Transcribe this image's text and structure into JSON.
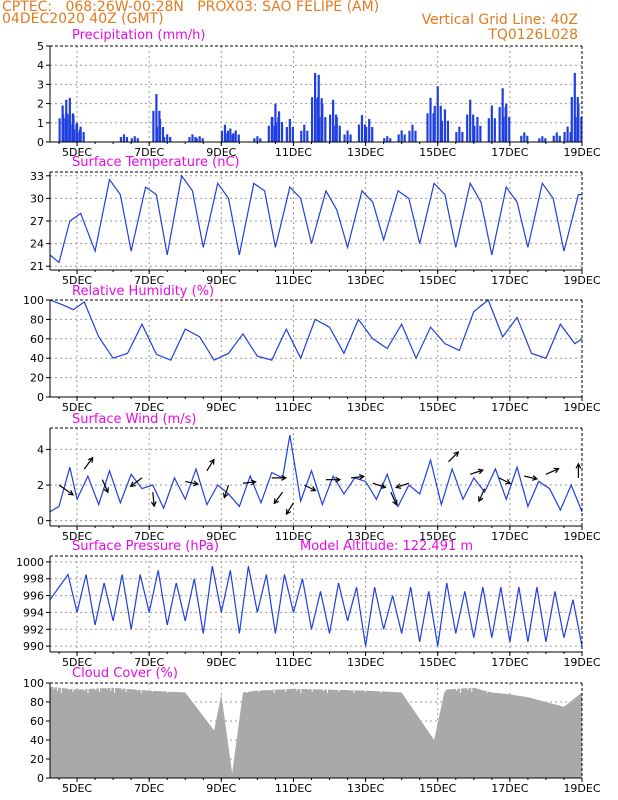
{
  "header": {
    "line1": "CPTEC:   068:26W-00:28N   PROX03: SAO FELIPE (AM)",
    "line2": "04DEC2020 40Z (GMT)",
    "grid_note": "Vertical Grid Line: 40Z",
    "code": "TQ0126L028"
  },
  "colors": {
    "title": "#e60be6",
    "header": "#e07b20",
    "line": "#1f3fe0",
    "cloud": "#a9a9a9",
    "bar": "#1f3fe0"
  },
  "x_ticks": [
    "5DEC",
    "7DEC",
    "9DEC",
    "11DEC",
    "13DEC",
    "15DEC",
    "17DEC",
    "19DEC"
  ],
  "chart_data": [
    {
      "type": "bar",
      "title": "Precipitation (mm/h)",
      "ylim": [
        0,
        5
      ],
      "yticks": [
        0,
        1,
        2,
        3,
        4,
        5
      ],
      "x_range_days": [
        4.25,
        19.0
      ],
      "events": [
        {
          "day": 4.6,
          "value": 1.9
        },
        {
          "day": 4.7,
          "value": 2.2
        },
        {
          "day": 4.8,
          "value": 2.3
        },
        {
          "day": 4.9,
          "value": 1.4
        },
        {
          "day": 5.0,
          "value": 1.0
        },
        {
          "day": 5.1,
          "value": 0.8
        },
        {
          "day": 6.3,
          "value": 0.4
        },
        {
          "day": 6.6,
          "value": 0.3
        },
        {
          "day": 7.2,
          "value": 2.5
        },
        {
          "day": 7.3,
          "value": 1.2
        },
        {
          "day": 7.5,
          "value": 0.4
        },
        {
          "day": 8.2,
          "value": 0.4
        },
        {
          "day": 8.4,
          "value": 0.3
        },
        {
          "day": 9.1,
          "value": 0.9
        },
        {
          "day": 9.25,
          "value": 0.7
        },
        {
          "day": 9.4,
          "value": 0.6
        },
        {
          "day": 10.0,
          "value": 0.3
        },
        {
          "day": 10.4,
          "value": 1.3
        },
        {
          "day": 10.5,
          "value": 2.0
        },
        {
          "day": 10.6,
          "value": 1.6
        },
        {
          "day": 10.9,
          "value": 1.2
        },
        {
          "day": 11.3,
          "value": 0.9
        },
        {
          "day": 11.6,
          "value": 3.6
        },
        {
          "day": 11.7,
          "value": 3.5
        },
        {
          "day": 11.8,
          "value": 2.0
        },
        {
          "day": 12.1,
          "value": 2.2
        },
        {
          "day": 12.2,
          "value": 1.3
        },
        {
          "day": 12.5,
          "value": 0.6
        },
        {
          "day": 12.9,
          "value": 1.4
        },
        {
          "day": 13.1,
          "value": 1.2
        },
        {
          "day": 13.6,
          "value": 0.3
        },
        {
          "day": 14.0,
          "value": 0.6
        },
        {
          "day": 14.3,
          "value": 0.9
        },
        {
          "day": 14.8,
          "value": 2.3
        },
        {
          "day": 15.0,
          "value": 2.9
        },
        {
          "day": 15.2,
          "value": 1.7
        },
        {
          "day": 15.6,
          "value": 0.8
        },
        {
          "day": 15.9,
          "value": 2.2
        },
        {
          "day": 16.1,
          "value": 1.3
        },
        {
          "day": 16.5,
          "value": 1.9
        },
        {
          "day": 16.8,
          "value": 2.8
        },
        {
          "day": 16.9,
          "value": 2.0
        },
        {
          "day": 17.4,
          "value": 0.5
        },
        {
          "day": 17.9,
          "value": 0.3
        },
        {
          "day": 18.3,
          "value": 0.5
        },
        {
          "day": 18.6,
          "value": 0.8
        },
        {
          "day": 18.8,
          "value": 3.6
        },
        {
          "day": 18.9,
          "value": 2.0
        }
      ]
    },
    {
      "type": "line",
      "title": "Surface Temperature (nC)",
      "ylim": [
        20.5,
        33.5
      ],
      "yticks": [
        21,
        24,
        27,
        30,
        33
      ],
      "x": [
        4.25,
        4.5,
        4.8,
        5.1,
        5.5,
        5.9,
        6.2,
        6.5,
        6.9,
        7.2,
        7.5,
        7.9,
        8.2,
        8.5,
        8.9,
        9.2,
        9.5,
        9.9,
        10.2,
        10.5,
        10.9,
        11.2,
        11.5,
        11.9,
        12.2,
        12.5,
        12.9,
        13.2,
        13.5,
        13.9,
        14.2,
        14.5,
        14.9,
        15.2,
        15.5,
        15.9,
        16.2,
        16.5,
        16.9,
        17.2,
        17.5,
        17.9,
        18.2,
        18.5,
        18.9,
        19.0
      ],
      "y": [
        22.5,
        21.5,
        27.0,
        28.0,
        23.0,
        32.5,
        30.5,
        23.0,
        31.5,
        30.5,
        22.5,
        33.0,
        31.0,
        23.5,
        32.0,
        30.0,
        22.5,
        32.0,
        31.0,
        23.5,
        31.5,
        30.0,
        24.0,
        31.0,
        28.5,
        23.5,
        31.0,
        29.5,
        24.5,
        31.0,
        30.0,
        24.0,
        32.0,
        30.5,
        23.5,
        32.0,
        29.5,
        22.5,
        31.5,
        29.5,
        23.5,
        32.0,
        30.0,
        23.0,
        30.5,
        30.5
      ]
    },
    {
      "type": "line",
      "title": "Relative Humidity (%)",
      "ylim": [
        0,
        100
      ],
      "yticks": [
        0,
        20,
        40,
        60,
        80,
        100
      ],
      "x": [
        4.25,
        4.6,
        4.9,
        5.2,
        5.6,
        6.0,
        6.4,
        6.8,
        7.2,
        7.6,
        8.0,
        8.4,
        8.8,
        9.2,
        9.6,
        10.0,
        10.4,
        10.8,
        11.2,
        11.6,
        12.0,
        12.4,
        12.8,
        13.2,
        13.6,
        14.0,
        14.4,
        14.8,
        15.2,
        15.6,
        16.0,
        16.4,
        16.8,
        17.2,
        17.6,
        18.0,
        18.4,
        18.8,
        19.0
      ],
      "y": [
        100,
        95,
        90,
        98,
        62,
        40,
        45,
        75,
        44,
        38,
        70,
        62,
        38,
        45,
        65,
        42,
        38,
        70,
        40,
        80,
        72,
        45,
        80,
        60,
        50,
        75,
        40,
        72,
        55,
        48,
        88,
        100,
        62,
        82,
        45,
        40,
        75,
        55,
        60
      ]
    },
    {
      "type": "line",
      "title": "Surface Wind (m/s)",
      "ylim": [
        -0.3,
        5.2
      ],
      "yticks": [
        0,
        2,
        4
      ],
      "x": [
        4.25,
        4.5,
        4.8,
        5.0,
        5.3,
        5.6,
        5.9,
        6.2,
        6.5,
        6.8,
        7.1,
        7.4,
        7.7,
        8.0,
        8.3,
        8.6,
        8.9,
        9.2,
        9.5,
        9.8,
        10.1,
        10.4,
        10.7,
        10.9,
        11.2,
        11.5,
        11.8,
        12.1,
        12.4,
        12.7,
        13.0,
        13.3,
        13.6,
        13.9,
        14.2,
        14.5,
        14.8,
        15.1,
        15.4,
        15.7,
        16.0,
        16.3,
        16.6,
        16.9,
        17.2,
        17.5,
        17.8,
        18.1,
        18.4,
        18.7,
        19.0
      ],
      "y": [
        0.5,
        0.8,
        3.0,
        1.2,
        2.5,
        0.9,
        2.8,
        1.0,
        2.6,
        1.8,
        2.0,
        0.7,
        2.4,
        1.2,
        2.9,
        0.9,
        2.0,
        1.5,
        0.8,
        2.5,
        1.0,
        2.7,
        2.4,
        4.8,
        1.1,
        2.8,
        0.9,
        2.5,
        1.5,
        2.4,
        2.2,
        1.2,
        2.6,
        0.8,
        2.0,
        1.5,
        3.4,
        0.9,
        2.9,
        1.2,
        2.4,
        1.6,
        2.9,
        1.2,
        3.0,
        0.8,
        2.2,
        1.8,
        0.6,
        2.0,
        0.5
      ],
      "arrows": [
        {
          "day": 4.5,
          "value": 2.0,
          "dx": 1,
          "dy": 0.7
        },
        {
          "day": 5.2,
          "value": 2.9,
          "dx": 0.6,
          "dy": -0.8
        },
        {
          "day": 5.7,
          "value": 2.3,
          "dx": 0.4,
          "dy": 0.9
        },
        {
          "day": 6.8,
          "value": 2.4,
          "dx": -0.8,
          "dy": 0.6
        },
        {
          "day": 7.1,
          "value": 1.6,
          "dx": 0.1,
          "dy": 1.0
        },
        {
          "day": 8.0,
          "value": 2.2,
          "dx": 0.9,
          "dy": 0.2
        },
        {
          "day": 8.6,
          "value": 2.8,
          "dx": 0.5,
          "dy": -0.8
        },
        {
          "day": 9.2,
          "value": 2.0,
          "dx": -0.3,
          "dy": 0.9
        },
        {
          "day": 9.6,
          "value": 2.1,
          "dx": 0.9,
          "dy": -0.1
        },
        {
          "day": 10.4,
          "value": 2.4,
          "dx": 1.0,
          "dy": 0.0
        },
        {
          "day": 10.7,
          "value": 1.6,
          "dx": -0.6,
          "dy": 0.8
        },
        {
          "day": 11.0,
          "value": 1.0,
          "dx": -0.5,
          "dy": 0.8
        },
        {
          "day": 11.3,
          "value": 2.0,
          "dx": 0.8,
          "dy": 0.4
        },
        {
          "day": 11.9,
          "value": 2.3,
          "dx": 1.0,
          "dy": 0.0
        },
        {
          "day": 12.6,
          "value": 2.4,
          "dx": 0.9,
          "dy": -0.1
        },
        {
          "day": 13.2,
          "value": 2.1,
          "dx": 0.9,
          "dy": 0.3
        },
        {
          "day": 13.7,
          "value": 1.6,
          "dx": 0.4,
          "dy": 0.9
        },
        {
          "day": 14.2,
          "value": 2.1,
          "dx": -0.9,
          "dy": 0.3
        },
        {
          "day": 15.3,
          "value": 3.3,
          "dx": 0.7,
          "dy": -0.7
        },
        {
          "day": 15.9,
          "value": 2.6,
          "dx": 0.9,
          "dy": -0.3
        },
        {
          "day": 16.3,
          "value": 1.8,
          "dx": -0.4,
          "dy": 0.9
        },
        {
          "day": 16.7,
          "value": 2.4,
          "dx": 0.8,
          "dy": 0.4
        },
        {
          "day": 17.4,
          "value": 2.5,
          "dx": 0.9,
          "dy": 0.2
        },
        {
          "day": 18.0,
          "value": 2.6,
          "dx": 0.9,
          "dy": -0.4
        },
        {
          "day": 18.9,
          "value": 2.4,
          "dx": 0.0,
          "dy": -1.0
        }
      ]
    },
    {
      "type": "line",
      "title": "Surface Pressure (hPa)",
      "subtitle": "Model Altitude: 122.491 m",
      "ylim": [
        989.3,
        1000.7
      ],
      "yticks": [
        990,
        992,
        994,
        996,
        998,
        1000
      ],
      "x": [
        4.25,
        4.5,
        4.75,
        5.0,
        5.25,
        5.5,
        5.75,
        6.0,
        6.25,
        6.5,
        6.75,
        7.0,
        7.25,
        7.5,
        7.75,
        8.0,
        8.25,
        8.5,
        8.75,
        9.0,
        9.25,
        9.5,
        9.75,
        10.0,
        10.25,
        10.5,
        10.75,
        11.0,
        11.25,
        11.5,
        11.75,
        12.0,
        12.25,
        12.5,
        12.75,
        13.0,
        13.25,
        13.5,
        13.75,
        14.0,
        14.25,
        14.5,
        14.75,
        15.0,
        15.25,
        15.5,
        15.75,
        16.0,
        16.25,
        16.5,
        16.75,
        17.0,
        17.25,
        17.5,
        17.75,
        18.0,
        18.25,
        18.5,
        18.75,
        19.0
      ],
      "y": [
        995.5,
        997.0,
        998.5,
        994.0,
        998.5,
        992.5,
        997.5,
        993.0,
        998.5,
        992.0,
        998.5,
        994.0,
        999.0,
        992.5,
        997.5,
        993.0,
        998.0,
        991.5,
        999.5,
        994.0,
        999.0,
        991.5,
        999.5,
        994.0,
        998.5,
        991.5,
        998.5,
        994.0,
        998.0,
        992.0,
        996.5,
        991.5,
        997.5,
        993.0,
        997.0,
        990.0,
        997.0,
        992.0,
        996.0,
        991.5,
        997.0,
        990.5,
        996.5,
        990.0,
        997.5,
        991.5,
        996.5,
        991.0,
        997.0,
        991.0,
        997.0,
        990.5,
        997.0,
        990.5,
        997.0,
        990.5,
        996.5,
        991.0,
        995.5,
        990.0
      ]
    },
    {
      "type": "area",
      "title": "Cloud Cover (%)",
      "ylim": [
        0,
        100
      ],
      "yticks": [
        0,
        20,
        40,
        60,
        80,
        100
      ],
      "x": [
        4.25,
        5.0,
        6.0,
        7.0,
        8.0,
        8.8,
        9.0,
        9.3,
        9.6,
        10.0,
        11.0,
        12.0,
        13.0,
        14.0,
        14.9,
        15.2,
        16.0,
        16.5,
        17.0,
        17.5,
        18.0,
        18.5,
        19.0
      ],
      "y": [
        96,
        93,
        95,
        92,
        90,
        50,
        88,
        5,
        90,
        92,
        94,
        93,
        92,
        90,
        40,
        93,
        95,
        90,
        88,
        85,
        80,
        75,
        90
      ]
    }
  ]
}
